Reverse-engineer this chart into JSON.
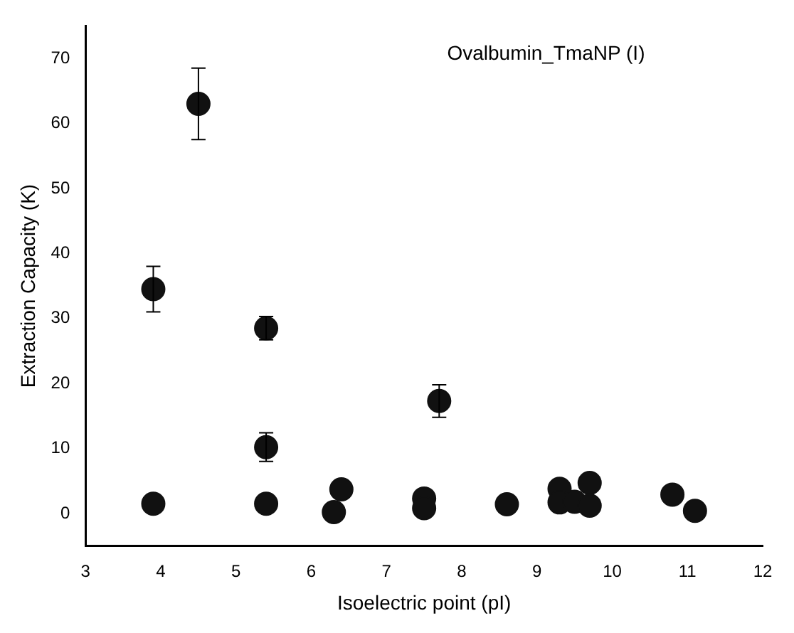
{
  "chart_data": {
    "type": "scatter",
    "title": "Ovalbumin_TmaNP (I)",
    "xlabel": "Isoelectric point (pI)",
    "ylabel": "Extraction Capacity (K)",
    "x": [
      3.9,
      4.5,
      5.4,
      5.4,
      7.7,
      3.9,
      5.4,
      6.3,
      6.4,
      7.5,
      7.5,
      8.6,
      9.3,
      9.3,
      9.5,
      9.7,
      9.7,
      10.8,
      11.1
    ],
    "series": [
      {
        "color": "#111111",
        "values": [
          34.5,
          63,
          28.5,
          10.2,
          17.3,
          1.5,
          1.5,
          0.2,
          3.7,
          2.3,
          0.8,
          1.4,
          3.8,
          1.7,
          1.8,
          4.7,
          1.2,
          2.9,
          0.4
        ],
        "errors": [
          3.5,
          5.5,
          1.8,
          2.2,
          2.5,
          null,
          null,
          null,
          null,
          null,
          null,
          null,
          null,
          null,
          null,
          null,
          null,
          null,
          null
        ]
      }
    ],
    "xlim": [
      3,
      12
    ],
    "xticks": [
      3,
      4,
      5,
      6,
      7,
      8,
      9,
      10,
      11,
      12
    ],
    "ylim": [
      -5,
      75
    ],
    "yticks": [
      0,
      10,
      20,
      30,
      40,
      50,
      60,
      70
    ],
    "grid": false,
    "legend": false,
    "marker": "circle"
  }
}
